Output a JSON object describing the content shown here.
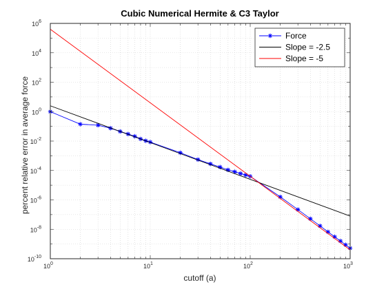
{
  "chart_data": {
    "type": "line",
    "title": "Cubic Numerical Hermite & C3 Taylor",
    "xlabel": "cutoff (a)",
    "ylabel": "percent relative error in average force",
    "xscale": "log",
    "yscale": "log",
    "xlim": [
      1,
      1000
    ],
    "ylim": [
      1e-10,
      1000000
    ],
    "x_ticks": [
      {
        "value": 1,
        "base": "10",
        "exp": "0"
      },
      {
        "value": 10,
        "base": "10",
        "exp": "1"
      },
      {
        "value": 100,
        "base": "10",
        "exp": "2"
      },
      {
        "value": 1000,
        "base": "10",
        "exp": "3"
      }
    ],
    "y_ticks": [
      {
        "value": 1e-10,
        "base": "10",
        "exp": "-10"
      },
      {
        "value": 1e-08,
        "base": "10",
        "exp": "-8"
      },
      {
        "value": 1e-06,
        "base": "10",
        "exp": "-6"
      },
      {
        "value": 0.0001,
        "base": "10",
        "exp": "-4"
      },
      {
        "value": 0.01,
        "base": "10",
        "exp": "-2"
      },
      {
        "value": 1,
        "base": "10",
        "exp": "0"
      },
      {
        "value": 100,
        "base": "10",
        "exp": "2"
      },
      {
        "value": 10000,
        "base": "10",
        "exp": "4"
      },
      {
        "value": 1000000,
        "base": "10",
        "exp": "6"
      }
    ],
    "grid": true,
    "legend_position": "top-right",
    "series": [
      {
        "name": "Force",
        "color": "#0000ff",
        "marker": "asterisk",
        "x": [
          1,
          2,
          3,
          4,
          5,
          6,
          7,
          8,
          9,
          10,
          20,
          30,
          40,
          50,
          60,
          70,
          80,
          90,
          100,
          200,
          300,
          400,
          500,
          600,
          700,
          800,
          900,
          1000
        ],
        "y": [
          1.0,
          0.14,
          0.12,
          0.075,
          0.045,
          0.03,
          0.021,
          0.014,
          0.0105,
          0.0085,
          0.0016,
          0.00055,
          0.00028,
          0.00017,
          0.00011,
          8.2e-05,
          6.2e-05,
          4.9e-05,
          4e-05,
          1.6e-06,
          2.2e-07,
          5.2e-08,
          1.7e-08,
          6.7e-09,
          3.1e-09,
          1.6e-09,
          8.8e-10,
          5.2e-10
        ]
      },
      {
        "name": "Slope = -2.5",
        "color": "#000000",
        "x": [
          1,
          1000
        ],
        "y": [
          2.5,
          7.9e-08
        ]
      },
      {
        "name": "Slope = -5",
        "color": "#ff0000",
        "x": [
          1,
          1000
        ],
        "y": [
          400000,
          4e-10
        ]
      }
    ]
  }
}
